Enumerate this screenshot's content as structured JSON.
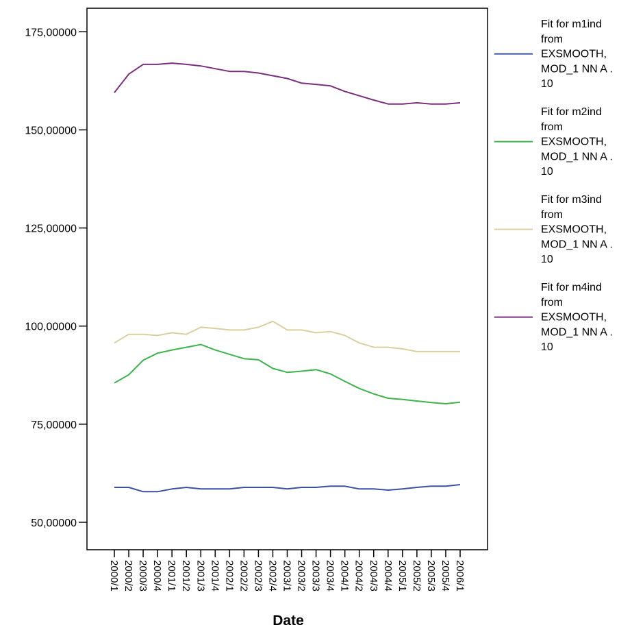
{
  "chart_data": {
    "type": "line",
    "title": "",
    "xlabel": "Date",
    "ylabel": "",
    "ylim": [
      43.0,
      181.0
    ],
    "yticks": [
      50,
      75,
      100,
      125,
      150,
      175
    ],
    "ytick_labels": [
      "50,00000",
      "75,00000",
      "100,00000",
      "125,00000",
      "150,00000",
      "175,00000"
    ],
    "grid": false,
    "legend_position": "right",
    "categories": [
      "2000/1",
      "2000/2",
      "2000/3",
      "2000/4",
      "2001/1",
      "2001/2",
      "2001/3",
      "2001/4",
      "2002/1",
      "2002/2",
      "2002/3",
      "2002/4",
      "2003/1",
      "2003/2",
      "2003/3",
      "2003/4",
      "2004/1",
      "2004/2",
      "2004/3",
      "2004/4",
      "2005/1",
      "2005/2",
      "2005/3",
      "2005/4",
      "2006/1"
    ],
    "series": [
      {
        "name": "Fit for m1ind from EXSMOOTH, MOD_1 NN A . 10",
        "legend_lines": [
          "Fit for m1ind",
          "from",
          "EXSMOOTH,",
          "MOD_1 NN A .",
          "10"
        ],
        "color": "#3c50a0",
        "values": [
          58.9,
          58.9,
          57.8,
          57.8,
          58.5,
          58.9,
          58.5,
          58.5,
          58.5,
          58.9,
          58.9,
          58.9,
          58.5,
          58.9,
          58.9,
          59.2,
          59.2,
          58.5,
          58.5,
          58.2,
          58.5,
          58.9,
          59.2,
          59.2,
          59.6
        ]
      },
      {
        "name": "Fit for m2ind from EXSMOOTH, MOD_1 NN A . 10",
        "legend_lines": [
          "Fit for m2ind",
          "from",
          "EXSMOOTH,",
          "MOD_1 NN A .",
          "10"
        ],
        "color": "#3cb44b",
        "values": [
          85.5,
          87.6,
          91.3,
          93.1,
          93.9,
          94.6,
          95.3,
          93.9,
          92.8,
          91.7,
          91.4,
          89.2,
          88.2,
          88.5,
          88.9,
          87.8,
          85.9,
          84.1,
          82.7,
          81.6,
          81.3,
          80.9,
          80.5,
          80.2,
          80.6
        ]
      },
      {
        "name": "Fit for m3ind from EXSMOOTH, MOD_1 NN A . 10",
        "legend_lines": [
          "Fit for m3ind",
          "from",
          "EXSMOOTH,",
          "MOD_1 NN A .",
          "10"
        ],
        "color": "#d9cfa0",
        "values": [
          95.7,
          97.9,
          97.9,
          97.6,
          98.3,
          97.9,
          99.7,
          99.4,
          99.0,
          99.0,
          99.7,
          101.2,
          99.0,
          99.0,
          98.3,
          98.6,
          97.6,
          95.7,
          94.6,
          94.6,
          94.2,
          93.5,
          93.5,
          93.5,
          93.5
        ]
      },
      {
        "name": "Fit for m4ind from EXSMOOTH, MOD_1 NN A . 10",
        "legend_lines": [
          "Fit for m4ind",
          "from",
          "EXSMOOTH,",
          "MOD_1 NN A .",
          "10"
        ],
        "color": "#7a2f7e",
        "values": [
          159.5,
          164.2,
          166.7,
          166.7,
          167.0,
          166.7,
          166.3,
          165.6,
          164.9,
          164.9,
          164.5,
          163.8,
          163.1,
          161.9,
          161.6,
          161.2,
          159.8,
          158.7,
          157.6,
          156.6,
          156.6,
          156.9,
          156.6,
          156.6,
          156.9
        ]
      }
    ]
  }
}
